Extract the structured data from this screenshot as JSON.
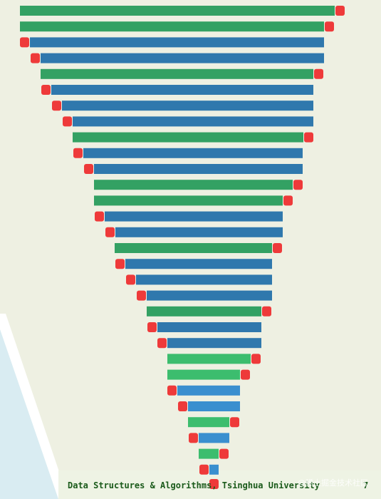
{
  "footer": {
    "text": "Data Structures & Algorithms, Tsinghua University",
    "page": "7"
  },
  "watermark": "@稀土掘金技术社区"
}
